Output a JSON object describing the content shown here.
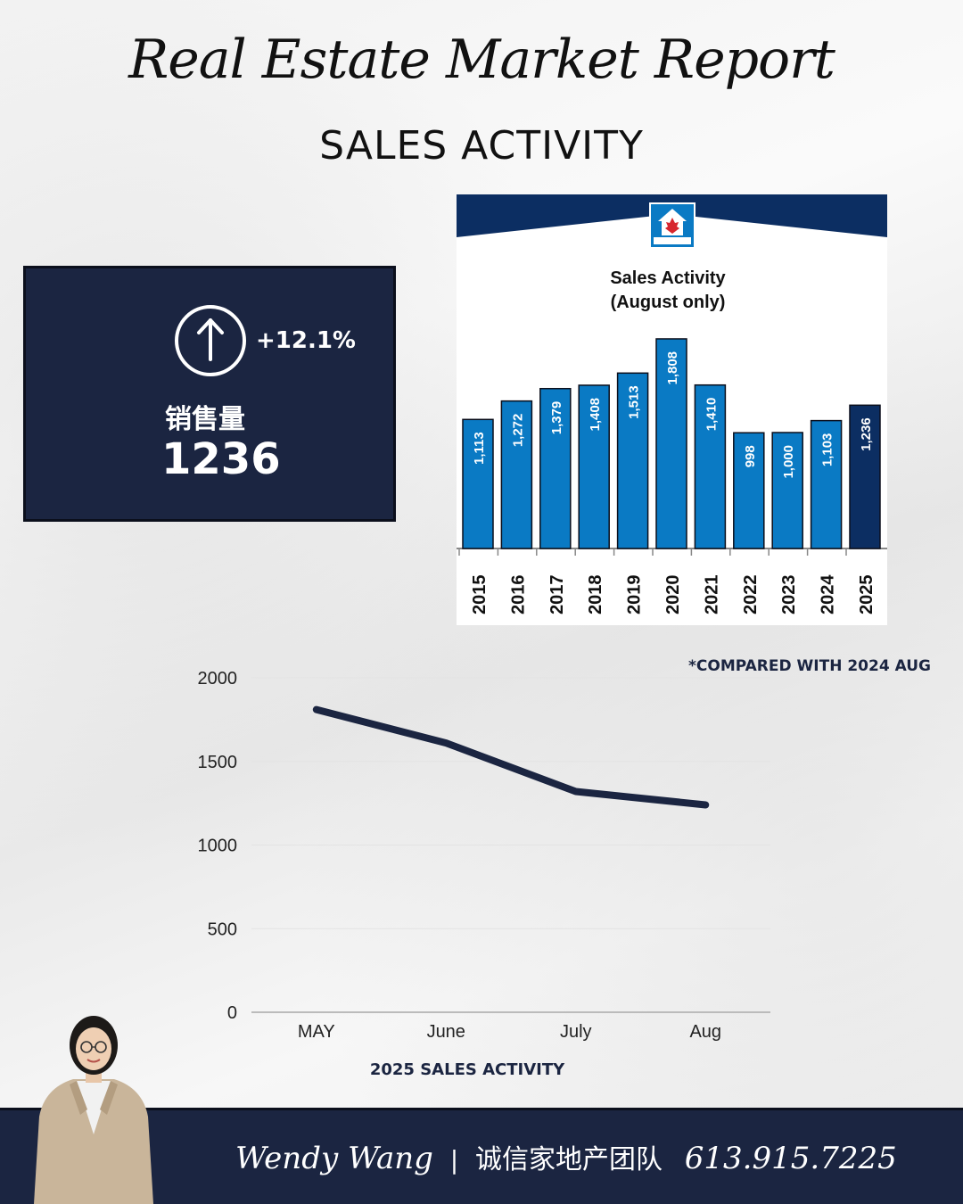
{
  "header": {
    "title": "Real Estate Market Report",
    "subtitle": "SALES ACTIVITY"
  },
  "stat": {
    "change": "+12.1%",
    "label": "销售量",
    "value": "1236"
  },
  "bar_chart_title_line1": "Sales Activity",
  "bar_chart_title_line2": "(August only)",
  "compare_note": "*COMPARED WITH 2024 AUG",
  "line_caption": "2025 SALES ACTIVITY",
  "footer": {
    "name": "Wendy Wang",
    "separator": "|",
    "team": "诚信家地产团队",
    "phone": "613.915.7225"
  },
  "colors": {
    "navy": "#1b2541",
    "bar_blue": "#0a7ac4",
    "bar_highlight": "#0c2e62",
    "header_band": "#0c2e62"
  },
  "chart_data": [
    {
      "type": "bar",
      "title": "Sales Activity (August only)",
      "categories": [
        "2015",
        "2016",
        "2017",
        "2018",
        "2019",
        "2020",
        "2021",
        "2022",
        "2023",
        "2024",
        "2025"
      ],
      "values": [
        1113,
        1272,
        1379,
        1408,
        1513,
        1808,
        1410,
        998,
        1000,
        1103,
        1236
      ],
      "data_labels": [
        "1,113",
        "1,272",
        "1,379",
        "1,408",
        "1,513",
        "1,808",
        "1,410",
        "998",
        "1,000",
        "1,103",
        "1,236"
      ],
      "highlight_index": 10,
      "ylim": [
        0,
        1900
      ],
      "grid": false
    },
    {
      "type": "line",
      "categories": [
        "MAY",
        "June",
        "July",
        "Aug"
      ],
      "values": [
        1810,
        1610,
        1320,
        1240
      ],
      "yticks": [
        "0",
        "500",
        "1000",
        "1500",
        "2000"
      ],
      "ylim": [
        0,
        2000
      ],
      "grid": true
    }
  ]
}
